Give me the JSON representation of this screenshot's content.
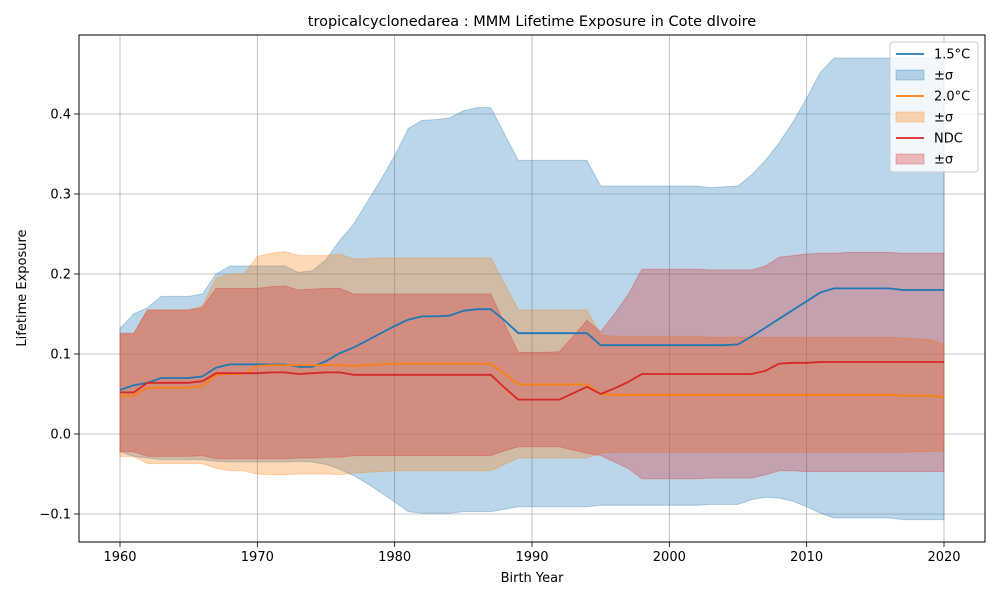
{
  "chart_data": {
    "type": "line",
    "title": "tropicalcyclonedarea : MMM Lifetime Exposure in Cote dIvoire",
    "xlabel": "Birth Year",
    "ylabel": "Lifetime Exposure",
    "xlim": [
      1956.9,
      2063.1
    ],
    "ylim": [
      -0.136,
      0.497
    ],
    "xticks": [
      1960,
      1970,
      1980,
      1990,
      2000,
      2010,
      2020
    ],
    "yticks": [
      -0.1,
      0.0,
      0.1,
      0.2,
      0.3,
      0.4
    ],
    "ytick_labels": [
      "−0.1",
      "0.0",
      "0.1",
      "0.2",
      "0.3",
      "0.4"
    ],
    "grid": true,
    "legend_position": "top-right",
    "years": [
      1960,
      1961,
      1962,
      1963,
      1964,
      1965,
      1966,
      1967,
      1968,
      1969,
      1970,
      1971,
      1972,
      1973,
      1974,
      1975,
      1976,
      1977,
      1978,
      1979,
      1980,
      1981,
      1982,
      1983,
      1984,
      1985,
      1986,
      1987,
      1988,
      1989,
      1990,
      1991,
      1992,
      1993,
      1994,
      1995,
      1996,
      1997,
      1998,
      1999,
      2000,
      2001,
      2002,
      2003,
      2004,
      2005,
      2006,
      2007,
      2008,
      2009,
      2010,
      2011,
      2012,
      2013,
      2014,
      2015,
      2016,
      2017,
      2018,
      2019,
      2020
    ],
    "series": [
      {
        "name": "1.5°C",
        "band_label": "±σ",
        "color": "#1f77b4",
        "band_color": "#1f77b4",
        "mean": [
          0.055,
          0.061,
          0.064,
          0.07,
          0.07,
          0.07,
          0.072,
          0.083,
          0.087,
          0.087,
          0.087,
          0.087,
          0.087,
          0.084,
          0.084,
          0.091,
          0.101,
          0.108,
          0.117,
          0.126,
          0.135,
          0.143,
          0.147,
          0.147,
          0.148,
          0.154,
          0.156,
          0.156,
          0.142,
          0.126,
          0.126,
          0.126,
          0.126,
          0.126,
          0.126,
          0.111,
          0.111,
          0.111,
          0.111,
          0.111,
          0.111,
          0.111,
          0.111,
          0.111,
          0.111,
          0.112,
          0.122,
          0.133,
          0.144,
          0.155,
          0.166,
          0.177,
          0.182,
          0.182,
          0.182,
          0.182,
          0.182,
          0.18,
          0.18,
          0.18,
          0.18
        ],
        "upper": [
          0.132,
          0.15,
          0.158,
          0.172,
          0.172,
          0.172,
          0.175,
          0.2,
          0.21,
          0.21,
          0.21,
          0.21,
          0.21,
          0.202,
          0.204,
          0.218,
          0.242,
          0.262,
          0.29,
          0.318,
          0.348,
          0.382,
          0.392,
          0.393,
          0.395,
          0.404,
          0.408,
          0.408,
          0.375,
          0.342,
          0.342,
          0.342,
          0.342,
          0.342,
          0.342,
          0.31,
          0.31,
          0.31,
          0.31,
          0.31,
          0.31,
          0.31,
          0.31,
          0.308,
          0.309,
          0.31,
          0.324,
          0.342,
          0.364,
          0.39,
          0.42,
          0.452,
          0.47,
          0.47,
          0.47,
          0.47,
          0.47,
          0.47,
          0.47,
          0.47,
          0.47
        ],
        "lower": [
          -0.022,
          -0.028,
          -0.03,
          -0.032,
          -0.032,
          -0.032,
          -0.032,
          -0.034,
          -0.035,
          -0.035,
          -0.035,
          -0.035,
          -0.035,
          -0.034,
          -0.035,
          -0.038,
          -0.044,
          -0.052,
          -0.062,
          -0.073,
          -0.085,
          -0.097,
          -0.099,
          -0.099,
          -0.099,
          -0.097,
          -0.097,
          -0.097,
          -0.094,
          -0.091,
          -0.091,
          -0.091,
          -0.091,
          -0.091,
          -0.091,
          -0.089,
          -0.089,
          -0.089,
          -0.089,
          -0.089,
          -0.089,
          -0.089,
          -0.089,
          -0.088,
          -0.088,
          -0.088,
          -0.082,
          -0.079,
          -0.08,
          -0.084,
          -0.091,
          -0.099,
          -0.105,
          -0.105,
          -0.105,
          -0.105,
          -0.105,
          -0.107,
          -0.107,
          -0.107,
          -0.107
        ]
      },
      {
        "name": "2.0°C",
        "band_label": "±σ",
        "color": "#ff7f0e",
        "band_color": "#ff7f0e",
        "mean": [
          0.048,
          0.048,
          0.058,
          0.058,
          0.058,
          0.058,
          0.06,
          0.074,
          0.075,
          0.075,
          0.085,
          0.086,
          0.086,
          0.086,
          0.086,
          0.086,
          0.086,
          0.085,
          0.086,
          0.087,
          0.088,
          0.088,
          0.088,
          0.088,
          0.088,
          0.088,
          0.088,
          0.088,
          0.075,
          0.062,
          0.062,
          0.062,
          0.062,
          0.062,
          0.062,
          0.05,
          0.049,
          0.049,
          0.049,
          0.049,
          0.049,
          0.049,
          0.049,
          0.049,
          0.049,
          0.049,
          0.049,
          0.049,
          0.049,
          0.049,
          0.049,
          0.049,
          0.049,
          0.049,
          0.049,
          0.049,
          0.049,
          0.048,
          0.048,
          0.048,
          0.046
        ],
        "upper": [
          0.125,
          0.125,
          0.155,
          0.155,
          0.155,
          0.155,
          0.16,
          0.195,
          0.2,
          0.2,
          0.222,
          0.226,
          0.228,
          0.223,
          0.223,
          0.223,
          0.225,
          0.219,
          0.219,
          0.22,
          0.22,
          0.22,
          0.22,
          0.22,
          0.22,
          0.22,
          0.22,
          0.22,
          0.188,
          0.155,
          0.155,
          0.155,
          0.155,
          0.155,
          0.155,
          0.124,
          0.122,
          0.122,
          0.122,
          0.122,
          0.122,
          0.122,
          0.122,
          0.121,
          0.121,
          0.121,
          0.121,
          0.121,
          0.121,
          0.121,
          0.121,
          0.121,
          0.121,
          0.121,
          0.121,
          0.121,
          0.121,
          0.12,
          0.119,
          0.118,
          0.112
        ],
        "lower": [
          -0.028,
          -0.028,
          -0.037,
          -0.037,
          -0.037,
          -0.037,
          -0.037,
          -0.043,
          -0.046,
          -0.046,
          -0.05,
          -0.051,
          -0.051,
          -0.05,
          -0.05,
          -0.05,
          -0.051,
          -0.049,
          -0.048,
          -0.047,
          -0.046,
          -0.046,
          -0.046,
          -0.046,
          -0.046,
          -0.046,
          -0.046,
          -0.046,
          -0.038,
          -0.03,
          -0.03,
          -0.03,
          -0.03,
          -0.03,
          -0.03,
          -0.024,
          -0.023,
          -0.023,
          -0.023,
          -0.023,
          -0.023,
          -0.023,
          -0.023,
          -0.023,
          -0.023,
          -0.023,
          -0.023,
          -0.023,
          -0.023,
          -0.023,
          -0.023,
          -0.023,
          -0.023,
          -0.023,
          -0.023,
          -0.023,
          -0.023,
          -0.023,
          -0.022,
          -0.022,
          -0.021
        ]
      },
      {
        "name": "NDC",
        "band_label": "±σ",
        "color": "#d62728",
        "band_color": "#d62728",
        "mean": [
          0.052,
          0.052,
          0.064,
          0.064,
          0.064,
          0.064,
          0.066,
          0.076,
          0.076,
          0.076,
          0.076,
          0.077,
          0.077,
          0.075,
          0.076,
          0.077,
          0.077,
          0.074,
          0.074,
          0.074,
          0.074,
          0.074,
          0.074,
          0.074,
          0.074,
          0.074,
          0.074,
          0.074,
          0.058,
          0.043,
          0.043,
          0.043,
          0.043,
          0.051,
          0.059,
          0.05,
          0.057,
          0.065,
          0.075,
          0.075,
          0.075,
          0.075,
          0.075,
          0.075,
          0.075,
          0.075,
          0.075,
          0.079,
          0.088,
          0.089,
          0.089,
          0.09,
          0.09,
          0.09,
          0.09,
          0.09,
          0.09,
          0.09,
          0.09,
          0.09,
          0.09
        ],
        "upper": [
          0.126,
          0.126,
          0.155,
          0.155,
          0.155,
          0.155,
          0.158,
          0.182,
          0.182,
          0.182,
          0.182,
          0.184,
          0.185,
          0.18,
          0.181,
          0.182,
          0.182,
          0.175,
          0.175,
          0.175,
          0.175,
          0.175,
          0.175,
          0.175,
          0.175,
          0.175,
          0.175,
          0.175,
          0.138,
          0.102,
          0.102,
          0.102,
          0.103,
          0.122,
          0.142,
          0.128,
          0.15,
          0.174,
          0.206,
          0.206,
          0.206,
          0.206,
          0.206,
          0.205,
          0.205,
          0.205,
          0.205,
          0.21,
          0.221,
          0.223,
          0.225,
          0.226,
          0.226,
          0.227,
          0.227,
          0.227,
          0.227,
          0.226,
          0.226,
          0.226,
          0.226
        ],
        "lower": [
          -0.022,
          -0.022,
          -0.028,
          -0.028,
          -0.028,
          -0.028,
          -0.027,
          -0.031,
          -0.031,
          -0.031,
          -0.031,
          -0.031,
          -0.031,
          -0.03,
          -0.03,
          -0.029,
          -0.029,
          -0.027,
          -0.027,
          -0.027,
          -0.027,
          -0.027,
          -0.027,
          -0.027,
          -0.027,
          -0.027,
          -0.027,
          -0.027,
          -0.021,
          -0.016,
          -0.016,
          -0.016,
          -0.016,
          -0.02,
          -0.024,
          -0.027,
          -0.035,
          -0.043,
          -0.056,
          -0.056,
          -0.056,
          -0.056,
          -0.056,
          -0.055,
          -0.055,
          -0.055,
          -0.055,
          -0.051,
          -0.046,
          -0.046,
          -0.047,
          -0.047,
          -0.047,
          -0.047,
          -0.047,
          -0.047,
          -0.047,
          -0.047,
          -0.047,
          -0.047,
          -0.047
        ]
      }
    ]
  }
}
